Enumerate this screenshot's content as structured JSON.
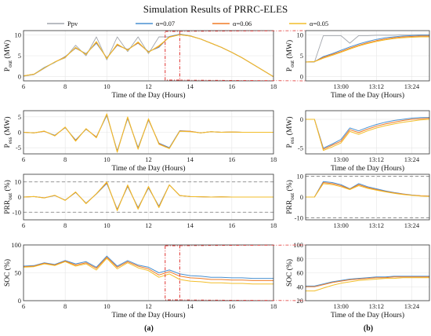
{
  "title": "Simulation Results of PRRC-ELES",
  "colors": {
    "ppv": "#a2a6ad",
    "a007": "#4a90d0",
    "a006": "#f07b26",
    "a005": "#f2be2a",
    "zoom": "#e0312f",
    "limit": "#8a8a8a"
  },
  "chart_data": [
    {
      "type": "line",
      "panel": "a1",
      "legend": [
        "Ppv",
        "α=0.07",
        "α=0.06",
        "α=0.05"
      ],
      "legend_placement": "top",
      "xlabel": "Time of the Day (Hours)",
      "ylabel": "P",
      "ylabel_sub": "out",
      "ylabel_unit": "(MW)",
      "xlim": [
        6,
        18
      ],
      "ylim": [
        -1,
        11
      ],
      "xticks": [
        "6",
        "8",
        "10",
        "12",
        "14",
        "16",
        "18"
      ],
      "yticks": [
        "0",
        "5",
        "10"
      ],
      "x": [
        6.0,
        6.5,
        7.0,
        7.5,
        8.0,
        8.5,
        9.0,
        9.5,
        10.0,
        10.5,
        11.0,
        11.5,
        12.0,
        12.5,
        13.0,
        13.5,
        14.0,
        14.5,
        15.0,
        15.5,
        16.0,
        16.5,
        17.0,
        17.5,
        18.0
      ],
      "series": [
        {
          "name": "Ppv",
          "values": [
            0.1,
            0.5,
            2.0,
            3.5,
            4.5,
            7.5,
            5.0,
            9.5,
            4.0,
            9.5,
            6.0,
            9.5,
            5.5,
            9.5,
            9.5,
            10.2,
            9.8,
            9.0,
            8.0,
            7.0,
            5.8,
            4.5,
            3.0,
            1.5,
            0.0
          ]
        },
        {
          "name": "α=0.07",
          "values": [
            0.2,
            0.6,
            2.2,
            3.4,
            4.8,
            6.8,
            5.5,
            8.0,
            4.5,
            7.5,
            6.5,
            8.0,
            6.0,
            7.0,
            9.6,
            10.1,
            9.7,
            9.0,
            8.0,
            7.0,
            5.8,
            4.5,
            3.0,
            1.5,
            0.0
          ]
        },
        {
          "name": "α=0.06",
          "values": [
            0.2,
            0.6,
            2.1,
            3.5,
            4.7,
            6.9,
            5.4,
            8.2,
            4.4,
            7.6,
            6.4,
            8.1,
            5.9,
            7.2,
            9.5,
            10.0,
            9.7,
            9.0,
            8.0,
            7.0,
            5.8,
            4.5,
            3.0,
            1.5,
            0.0
          ]
        },
        {
          "name": "α=0.05",
          "values": [
            0.2,
            0.6,
            2.1,
            3.5,
            4.6,
            7.0,
            5.3,
            8.4,
            4.3,
            7.8,
            6.3,
            8.3,
            5.8,
            7.4,
            9.4,
            10.0,
            9.7,
            9.0,
            8.0,
            7.0,
            5.8,
            4.5,
            3.0,
            1.5,
            0.0
          ]
        }
      ]
    },
    {
      "type": "line",
      "panel": "a2",
      "xlabel": "Time of the Day (Hours)",
      "ylabel": "P",
      "ylabel_sub": "ess",
      "ylabel_unit": "(MW)",
      "xlim": [
        6,
        18
      ],
      "ylim": [
        -7,
        7
      ],
      "xticks": [
        "6",
        "8",
        "10",
        "12",
        "14",
        "16",
        "18"
      ],
      "yticks": [
        "-5",
        "0",
        "5"
      ],
      "x": [
        6.0,
        6.5,
        7.0,
        7.5,
        8.0,
        8.5,
        9.0,
        9.5,
        10.0,
        10.5,
        11.0,
        11.5,
        12.0,
        12.5,
        13.0,
        13.5,
        14.0,
        14.5,
        15.0,
        15.5,
        16.0,
        16.5,
        17.0,
        17.5,
        18.0
      ],
      "series": [
        {
          "name": "α=0.07",
          "values": [
            0.0,
            -0.2,
            0.3,
            -1.0,
            1.5,
            -2.5,
            1.0,
            -1.5,
            5.5,
            -6.0,
            4.5,
            -5.0,
            4.0,
            -3.5,
            -5.0,
            0.5,
            0.3,
            -0.2,
            0.2,
            0.0,
            0.1,
            0.0,
            0.0,
            0.0,
            0.0
          ]
        },
        {
          "name": "α=0.06",
          "values": [
            0.0,
            -0.2,
            0.3,
            -1.1,
            1.6,
            -2.7,
            1.1,
            -1.6,
            5.8,
            -6.3,
            4.8,
            -5.3,
            4.2,
            -3.7,
            -5.2,
            0.4,
            0.3,
            -0.2,
            0.2,
            0.0,
            0.1,
            0.0,
            0.0,
            0.0,
            0.0
          ]
        },
        {
          "name": "α=0.05",
          "values": [
            0.0,
            -0.2,
            0.4,
            -1.2,
            1.7,
            -2.9,
            1.2,
            -1.8,
            6.0,
            -6.5,
            5.0,
            -5.5,
            4.4,
            -3.9,
            -5.3,
            0.3,
            0.2,
            -0.2,
            0.2,
            0.0,
            0.1,
            0.0,
            0.0,
            0.0,
            0.0
          ]
        }
      ]
    },
    {
      "type": "line",
      "panel": "a3",
      "xlabel": "",
      "ylabel": "PRR",
      "ylabel_sub": "out",
      "ylabel_unit": "(%)",
      "xlim": [
        6,
        18
      ],
      "ylim": [
        -15,
        15
      ],
      "xticks": [
        "6",
        "8",
        "10",
        "12",
        "14",
        "16",
        "18"
      ],
      "yticks": [
        "-10",
        "0",
        "10"
      ],
      "limits": [
        10,
        -10
      ],
      "x": [
        6.0,
        6.5,
        7.0,
        7.5,
        8.0,
        8.5,
        9.0,
        9.5,
        10.0,
        10.5,
        11.0,
        11.5,
        12.0,
        12.5,
        13.0,
        13.5,
        14.0,
        14.5,
        15.0,
        15.5,
        16.0,
        16.5,
        17.0,
        17.5,
        18.0
      ],
      "series": [
        {
          "name": "α=0.07",
          "values": [
            0.0,
            0.3,
            -0.5,
            1.0,
            -2.0,
            3.0,
            -4.0,
            2.0,
            9.0,
            -8.0,
            7.0,
            -7.0,
            6.0,
            -6.0,
            8.0,
            1.0,
            0.3,
            0.2,
            0.0,
            0.1,
            0.0,
            0.0,
            0.0,
            0.0,
            0.0
          ]
        },
        {
          "name": "α=0.06",
          "values": [
            0.0,
            0.3,
            -0.5,
            1.1,
            -2.1,
            3.2,
            -4.2,
            2.1,
            9.5,
            -8.5,
            7.5,
            -7.5,
            6.5,
            -6.5,
            8.0,
            1.0,
            0.3,
            0.2,
            0.0,
            0.1,
            0.0,
            0.0,
            0.0,
            0.0,
            0.0
          ]
        },
        {
          "name": "α=0.05",
          "values": [
            0.0,
            0.3,
            -0.6,
            1.2,
            -2.2,
            3.4,
            -4.4,
            2.2,
            10.0,
            -9.0,
            8.0,
            -8.0,
            7.0,
            -7.0,
            8.0,
            1.0,
            0.3,
            0.2,
            0.0,
            0.1,
            0.0,
            0.0,
            0.0,
            0.0,
            0.0
          ]
        }
      ]
    },
    {
      "type": "line",
      "panel": "a4",
      "xlabel": "Time of the Day (Hours)",
      "ylabel": "SOC (%)",
      "xlim": [
        6,
        18
      ],
      "ylim": [
        0,
        100
      ],
      "xticks": [
        "6",
        "8",
        "10",
        "12",
        "14",
        "16",
        "18"
      ],
      "yticks": [
        "0",
        "50",
        "100"
      ],
      "x": [
        6.0,
        6.5,
        7.0,
        7.5,
        8.0,
        8.5,
        9.0,
        9.5,
        10.0,
        10.5,
        11.0,
        11.5,
        12.0,
        12.5,
        13.0,
        13.5,
        14.0,
        14.5,
        15.0,
        15.5,
        16.0,
        16.5,
        17.0,
        17.5,
        18.0
      ],
      "series": [
        {
          "name": "α=0.07",
          "values": [
            62,
            63,
            68,
            65,
            72,
            66,
            70,
            60,
            80,
            62,
            72,
            64,
            60,
            50,
            55,
            48,
            45,
            44,
            42,
            42,
            41,
            41,
            40,
            40,
            40
          ]
        },
        {
          "name": "α=0.06",
          "values": [
            61,
            62,
            67,
            64,
            71,
            64,
            68,
            58,
            78,
            60,
            70,
            62,
            57,
            46,
            52,
            44,
            41,
            40,
            38,
            38,
            37,
            37,
            36,
            36,
            36
          ]
        },
        {
          "name": "α=0.05",
          "values": [
            60,
            61,
            66,
            63,
            70,
            62,
            66,
            55,
            76,
            57,
            68,
            59,
            54,
            42,
            48,
            38,
            35,
            34,
            32,
            32,
            31,
            31,
            30,
            30,
            30
          ]
        }
      ]
    },
    {
      "type": "line",
      "panel": "b1",
      "xlabel": "Time of the Day (Hours)",
      "ylabel": "P",
      "ylabel_sub": "out",
      "ylabel_unit": "(MW)",
      "xlim": [
        12.8,
        13.5
      ],
      "ylim": [
        -1,
        11
      ],
      "xticks": [
        "13:00",
        "13:12",
        "13:24"
      ],
      "xtick_values": [
        13.0,
        13.2,
        13.4
      ],
      "yticks": [
        "0",
        "5",
        "10"
      ],
      "x": [
        12.8,
        12.85,
        12.9,
        12.95,
        13.0,
        13.05,
        13.1,
        13.15,
        13.2,
        13.25,
        13.3,
        13.35,
        13.4,
        13.45,
        13.5
      ],
      "series": [
        {
          "name": "Ppv",
          "values": [
            3.5,
            3.5,
            9.8,
            9.8,
            9.8,
            8.0,
            9.8,
            9.8,
            9.9,
            9.9,
            9.9,
            10.0,
            10.0,
            10.0,
            10.0
          ]
        },
        {
          "name": "α=0.07",
          "values": [
            3.5,
            3.6,
            4.8,
            5.5,
            6.3,
            7.1,
            7.8,
            8.4,
            8.9,
            9.3,
            9.5,
            9.7,
            9.8,
            9.9,
            9.9
          ]
        },
        {
          "name": "α=0.06",
          "values": [
            3.5,
            3.6,
            4.6,
            5.3,
            6.0,
            6.8,
            7.5,
            8.1,
            8.6,
            9.0,
            9.3,
            9.5,
            9.6,
            9.7,
            9.7
          ]
        },
        {
          "name": "α=0.05",
          "values": [
            3.5,
            3.6,
            4.4,
            5.1,
            5.8,
            6.6,
            7.3,
            7.9,
            8.4,
            8.8,
            9.1,
            9.3,
            9.4,
            9.5,
            9.5
          ]
        }
      ]
    },
    {
      "type": "line",
      "panel": "b2",
      "xlabel": "Time of the Day (Hours)",
      "ylabel": "P",
      "ylabel_sub": "ess",
      "ylabel_unit": "(MW)",
      "xlim": [
        12.8,
        13.5
      ],
      "ylim": [
        -6,
        1.5
      ],
      "xticks": [
        "13:00",
        "13:12",
        "13:24"
      ],
      "xtick_values": [
        13.0,
        13.2,
        13.4
      ],
      "yticks": [
        "-5",
        "0"
      ],
      "x": [
        12.8,
        12.85,
        12.9,
        12.95,
        13.0,
        13.05,
        13.1,
        13.15,
        13.2,
        13.25,
        13.3,
        13.35,
        13.4,
        13.45,
        13.5
      ],
      "series": [
        {
          "name": "α=0.07",
          "values": [
            0.0,
            0.0,
            -5.0,
            -4.3,
            -3.5,
            -1.5,
            -2.0,
            -1.4,
            -0.9,
            -0.5,
            -0.2,
            0.0,
            0.2,
            0.3,
            0.3
          ]
        },
        {
          "name": "α=0.06",
          "values": [
            0.0,
            0.0,
            -5.2,
            -4.5,
            -3.8,
            -1.8,
            -2.3,
            -1.7,
            -1.2,
            -0.8,
            -0.5,
            -0.2,
            0.0,
            0.1,
            0.2
          ]
        },
        {
          "name": "α=0.05",
          "values": [
            0.0,
            0.0,
            -5.4,
            -4.8,
            -4.1,
            -2.1,
            -2.6,
            -2.0,
            -1.5,
            -1.1,
            -0.8,
            -0.5,
            -0.3,
            -0.1,
            0.0
          ]
        }
      ]
    },
    {
      "type": "line",
      "panel": "b3",
      "xlabel": "",
      "ylabel": "PRR",
      "ylabel_sub": "out",
      "ylabel_unit": "(%)",
      "xlim": [
        12.8,
        13.5
      ],
      "ylim": [
        -11,
        11
      ],
      "xticks": [
        "13:00",
        "13:12",
        "13:24"
      ],
      "xtick_values": [
        13.0,
        13.2,
        13.4
      ],
      "yticks": [
        "-10",
        "0",
        "10"
      ],
      "limits": [
        10,
        -10
      ],
      "x": [
        12.8,
        12.85,
        12.9,
        12.95,
        13.0,
        13.05,
        13.1,
        13.15,
        13.2,
        13.25,
        13.3,
        13.35,
        13.4,
        13.45,
        13.5
      ],
      "series": [
        {
          "name": "α=0.07",
          "values": [
            0.0,
            0.0,
            7.5,
            7.0,
            6.0,
            4.0,
            6.5,
            5.0,
            4.0,
            3.0,
            2.2,
            1.5,
            1.0,
            0.6,
            0.4
          ]
        },
        {
          "name": "α=0.06",
          "values": [
            0.0,
            0.0,
            7.0,
            6.5,
            5.5,
            3.8,
            6.0,
            4.6,
            3.6,
            2.7,
            2.0,
            1.4,
            0.9,
            0.6,
            0.4
          ]
        },
        {
          "name": "α=0.05",
          "values": [
            0.0,
            0.0,
            6.5,
            6.0,
            5.0,
            3.6,
            5.5,
            4.2,
            3.3,
            2.5,
            1.8,
            1.2,
            0.8,
            0.5,
            0.3
          ]
        }
      ]
    },
    {
      "type": "line",
      "panel": "b4",
      "xlabel": "Time of the Day (Hours)",
      "ylabel": "SOC (%)",
      "xlim": [
        12.8,
        13.5
      ],
      "ylim": [
        20,
        100
      ],
      "xticks": [
        "13:00",
        "13:12",
        "13:24"
      ],
      "xtick_values": [
        13.0,
        13.2,
        13.4
      ],
      "yticks": [
        "20",
        "40",
        "60",
        "80",
        "100"
      ],
      "x": [
        12.8,
        12.85,
        12.9,
        12.95,
        13.0,
        13.05,
        13.1,
        13.15,
        13.2,
        13.25,
        13.3,
        13.35,
        13.4,
        13.45,
        13.5
      ],
      "series": [
        {
          "name": "α=0.07",
          "values": [
            41,
            41,
            44,
            47,
            49,
            51,
            52,
            53,
            54,
            54,
            55,
            55,
            55,
            55,
            55
          ]
        },
        {
          "name": "α=0.06",
          "values": [
            40,
            40,
            43,
            46,
            48,
            50,
            51,
            52,
            53,
            53,
            54,
            54,
            54,
            54,
            54
          ]
        },
        {
          "name": "α=0.05",
          "values": [
            34,
            34,
            38,
            42,
            45,
            47,
            49,
            50,
            51,
            52,
            52,
            53,
            53,
            53,
            53
          ]
        }
      ]
    }
  ],
  "zoom_window": [
    12.8,
    13.5
  ],
  "zoom_panels": [
    "a1",
    "a4"
  ],
  "subfigure_labels": {
    "a": "(a)",
    "b": "(b)"
  }
}
